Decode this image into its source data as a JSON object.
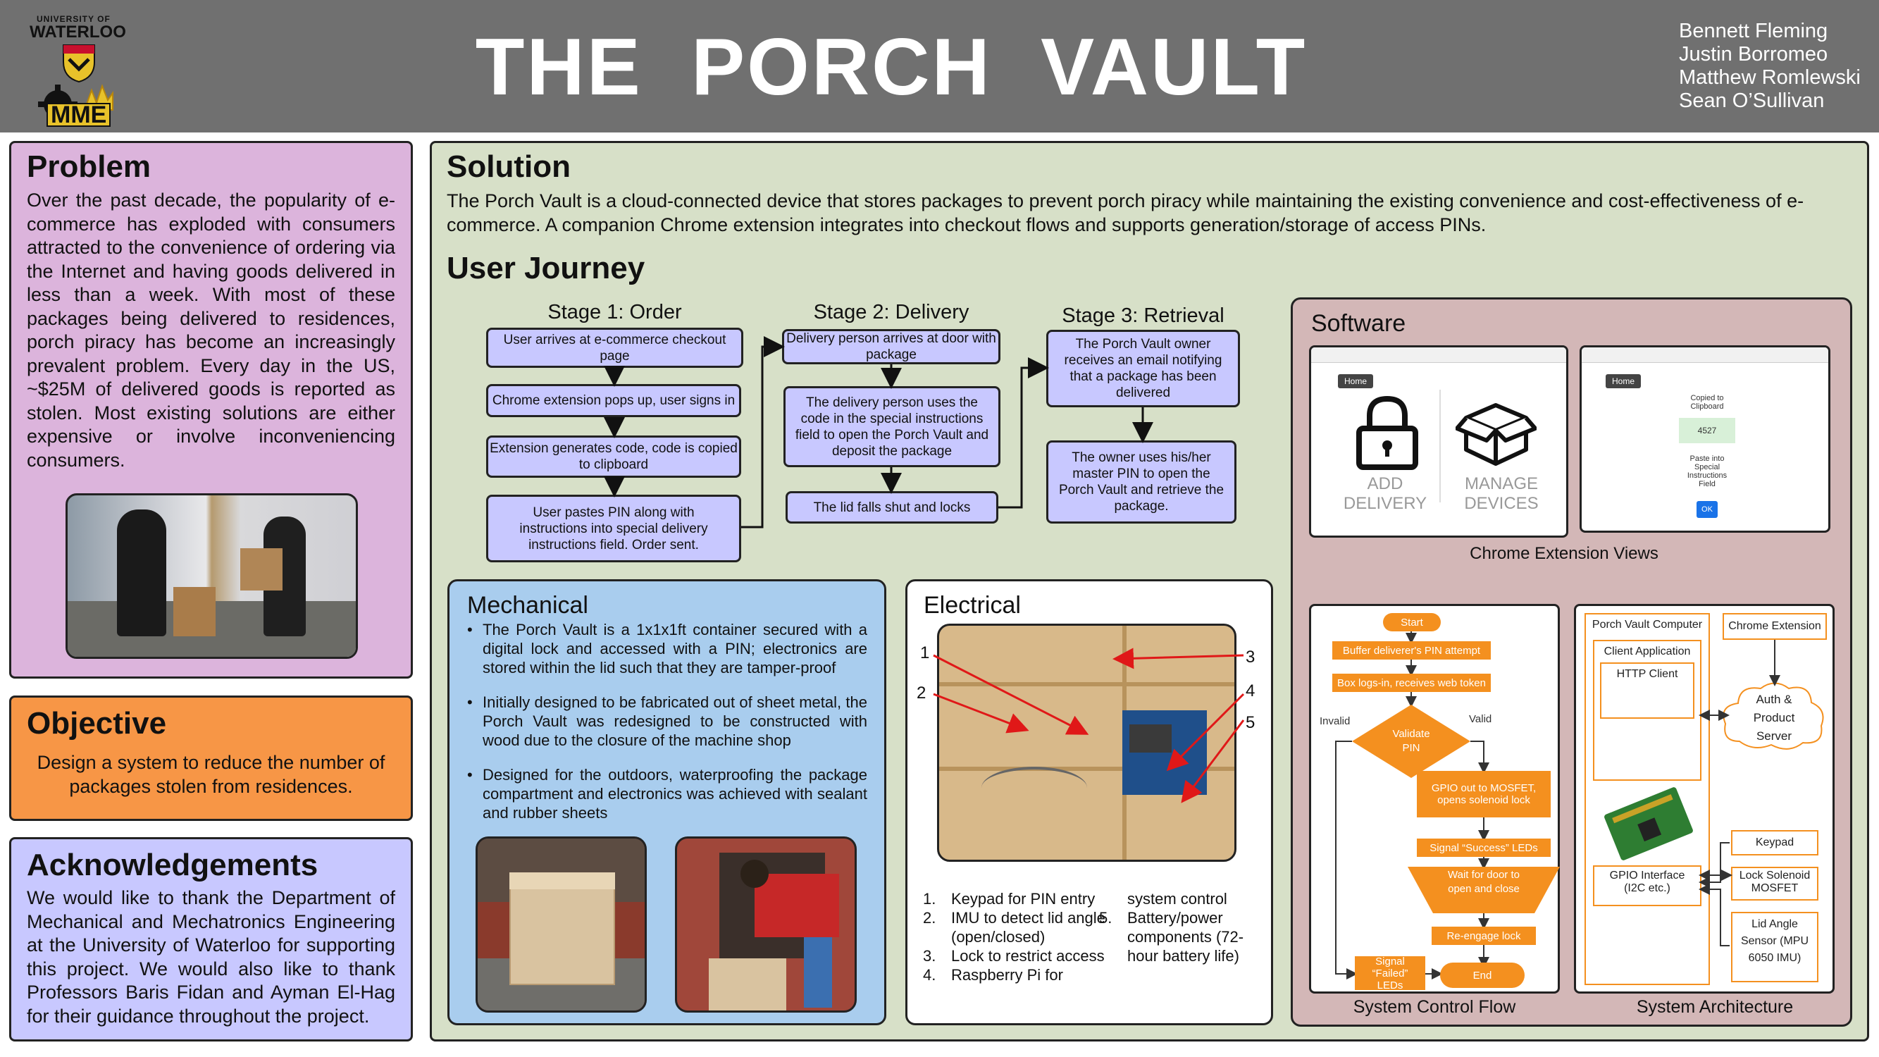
{
  "header": {
    "title": "THE  PORCH  VAULT",
    "logo_university": "UNIVERSITY OF",
    "logo_waterloo": "WATERLOO",
    "logo_mme": "MME",
    "authors": [
      "Bennett Fleming",
      "Justin Borromeo",
      "Matthew Romlewski",
      "Sean O’Sullivan"
    ]
  },
  "problem": {
    "title": "Problem",
    "text": "Over the past decade, the popularity of e-commerce has exploded with consumers attracted to the convenience of ordering via the Internet and having goods delivered in less than a week. With most of these packages being delivered to residences, porch piracy has become an increasingly prevalent problem. Every day in the US, ~$25M of delivered goods is reported as stolen. Most existing solutions are either expensive or involve inconveniencing consumers."
  },
  "objective": {
    "title": "Objective",
    "text": "Design a system to reduce the number of packages stolen from residences."
  },
  "ack": {
    "title": "Acknowledgements",
    "text": "We would like to thank the Department of Mechanical and Mechatronics Engineering at the University of Waterloo for supporting this project. We would also like to thank Professors Baris Fidan and Ayman El-Hag for their guidance throughout the project."
  },
  "solution": {
    "title": "Solution",
    "text": "The Porch Vault is a cloud-connected device that stores packages to prevent porch piracy while maintaining the existing convenience and cost-effectiveness of e-commerce.  A companion Chrome extension integrates into checkout flows and supports generation/storage of access PINs."
  },
  "journey": {
    "title": "User Journey",
    "stage1": {
      "title": "Stage 1: Order",
      "steps": [
        "User arrives at e-commerce checkout page",
        "Chrome extension pops up, user signs in",
        "Extension generates code, code is copied to clipboard",
        "User pastes PIN along with instructions into special delivery instructions field.  Order sent."
      ]
    },
    "stage2": {
      "title": "Stage 2: Delivery",
      "steps": [
        "Delivery person arrives at door with package",
        "The delivery person uses the code in the special instructions field to open the Porch Vault and deposit the package",
        "The lid falls shut and locks"
      ]
    },
    "stage3": {
      "title": "Stage 3: Retrieval",
      "steps": [
        "The Porch Vault owner receives an email notifying that a package has been delivered",
        "The owner uses his/her master PIN to open the Porch Vault and retrieve the package."
      ]
    }
  },
  "software": {
    "title": "Software",
    "ext_caption": "Chrome Extension Views",
    "view1": {
      "home": "Home",
      "add": "ADD\nDELIVERY",
      "manage": "MANAGE\nDEVICES"
    },
    "view2": {
      "home": "Home",
      "copied": "Copied to Clipboard",
      "pin": "4527",
      "paste": "Paste into Special Instructions Field",
      "ok": "OK"
    },
    "flow_caption": "System Control Flow",
    "flow": {
      "start": "Start",
      "buffer": "Buffer deliverer's PIN attempt",
      "box": "Box logs-in, receives web token",
      "validate": "Validate PIN",
      "invalid": "Invalid",
      "valid": "Valid",
      "gpio": "GPIO out to MOSFET, opens solenoid lock",
      "success": "Signal “Success” LEDs",
      "wait": "Wait for door to open and close",
      "reengage": "Re-engage lock",
      "failed": "Signal “Failed” LEDs",
      "end": "End"
    },
    "arch_caption": "System Architecture",
    "arch": {
      "computer": "Porch Vault Computer",
      "client_app": "Client Application",
      "http": "HTTP Client",
      "gpio": "GPIO Interface (I2C etc.)",
      "chrome_ext": "Chrome Extension",
      "server": "Auth & Product Server",
      "keypad": "Keypad",
      "solenoid": "Lock Solenoid MOSFET",
      "lid": "Lid Angle Sensor (MPU 6050 IMU)"
    }
  },
  "mechanical": {
    "title": "Mechanical",
    "bullets": [
      "The Porch Vault is a 1x1x1ft container secured with a digital lock and accessed with a PIN; electronics are stored within the lid such that they are tamper-proof",
      "Initially designed to be fabricated out of sheet metal, the Porch Vault was redesigned to be constructed with wood due to the closure of the machine shop",
      "Designed for the outdoors, waterproofing the package compartment and electronics was achieved with sealant and rubber sheets"
    ]
  },
  "electrical": {
    "title": "Electrical",
    "callouts": [
      "1",
      "2",
      "3",
      "4",
      "5"
    ],
    "list_left": [
      "Keypad for PIN entry",
      "IMU to detect lid angle (open/closed)",
      "Lock to restrict access",
      "Raspberry Pi for"
    ],
    "list_right_cont": "system control",
    "list_right": [
      "Battery/power components (72-hour battery life)"
    ]
  },
  "colors": {
    "header": "#707070",
    "problem": "#dcb4dc",
    "objective": "#f79646",
    "ack": "#c8c8ff",
    "solution": "#d7e0c8",
    "software": "#d3b7b7",
    "mechanical": "#a9cdee",
    "flow_orange": "#f4901f"
  }
}
